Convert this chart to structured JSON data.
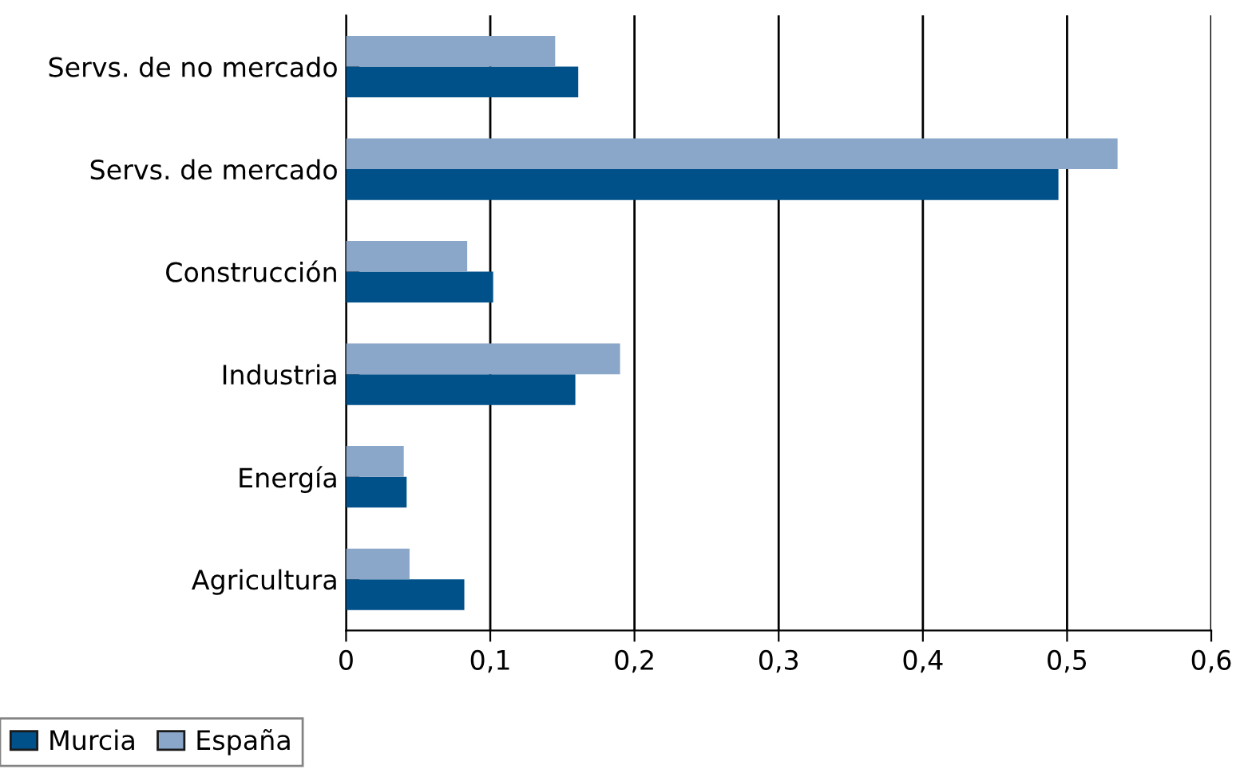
{
  "chart_data": {
    "type": "bar",
    "orientation": "horizontal",
    "categories": [
      "Servs. de no mercado",
      "Servs. de mercado",
      "Construcción",
      "Industria",
      "Energía",
      "Agricultura"
    ],
    "series": [
      {
        "name": "Murcia",
        "color": "#00508a",
        "values": [
          0.161,
          0.494,
          0.102,
          0.159,
          0.042,
          0.082
        ]
      },
      {
        "name": "España",
        "color": "#8aa6c8",
        "values": [
          0.145,
          0.535,
          0.084,
          0.19,
          0.04,
          0.044
        ]
      }
    ],
    "xlim": [
      0,
      0.6
    ],
    "xticks": [
      0,
      {
        "value": 0.1,
        "label": "0,1"
      },
      {
        "value": 0.2,
        "label": "0,2"
      },
      {
        "value": 0.3,
        "label": "0,3"
      },
      {
        "value": 0.4,
        "label": "0,4"
      },
      {
        "value": 0.5,
        "label": "0,5"
      },
      {
        "value": 0.6,
        "label": "0,6"
      }
    ],
    "grid": "x",
    "legend": "bottom left"
  }
}
